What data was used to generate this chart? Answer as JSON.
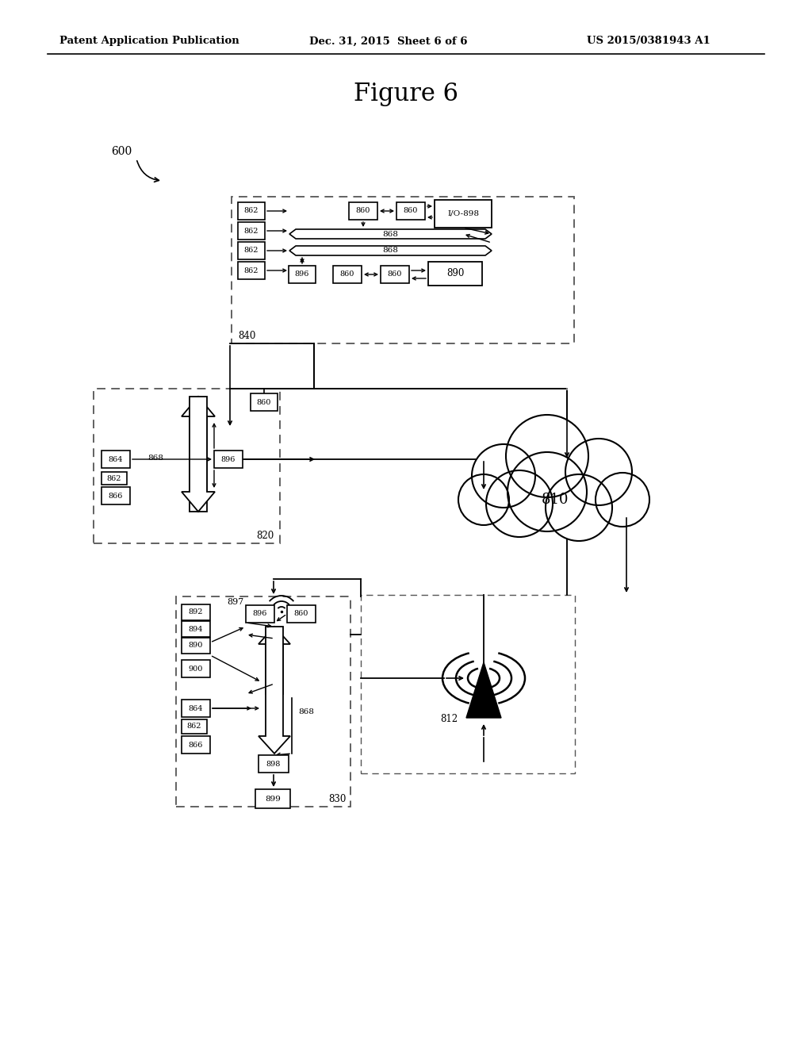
{
  "bg_color": "#ffffff",
  "header_left": "Patent Application Publication",
  "header_mid": "Dec. 31, 2015  Sheet 6 of 6",
  "header_right": "US 2015/0381943 A1",
  "figure_title": "Figure 6"
}
